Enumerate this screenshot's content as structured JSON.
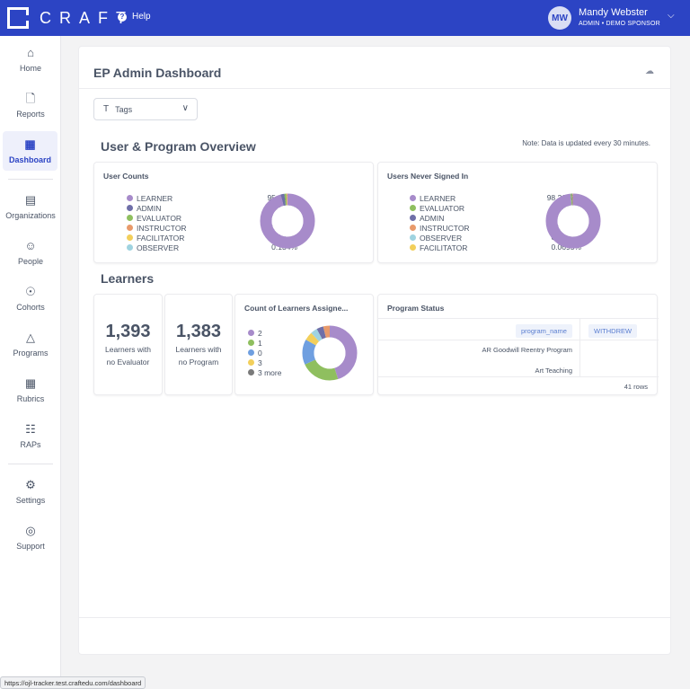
{
  "app": {
    "logo_text": "CRAFT",
    "help_label": "Help",
    "user": {
      "initials": "MW",
      "name": "Mandy Webster",
      "role": "ADMIN • DEMO SPONSOR"
    }
  },
  "sidebar": {
    "items": [
      {
        "label": "Home",
        "icon": "home-icon"
      },
      {
        "label": "Reports",
        "icon": "file-icon"
      },
      {
        "label": "Dashboard",
        "icon": "grid-icon",
        "active": true
      },
      {
        "label": "Organizations",
        "icon": "building-icon"
      },
      {
        "label": "People",
        "icon": "people-icon"
      },
      {
        "label": "Cohorts",
        "icon": "cohort-icon"
      },
      {
        "label": "Programs",
        "icon": "graduation-cap-icon"
      },
      {
        "label": "Rubrics",
        "icon": "table-icon"
      },
      {
        "label": "RAPs",
        "icon": "clipboard-icon"
      },
      {
        "label": "Settings",
        "icon": "gear-icon"
      },
      {
        "label": "Support",
        "icon": "lifebuoy-icon"
      }
    ]
  },
  "dashboard": {
    "title": "EP Admin Dashboard",
    "tags_filter": {
      "label": "Tags"
    },
    "overview": {
      "title": "User & Program Overview",
      "note": "Note: Data is updated every 30 minutes."
    },
    "learners_title": "Learners",
    "learners_no_evaluator": {
      "value": "1,393",
      "label_line1": "Learners with",
      "label_line2": "no Evaluator"
    },
    "learners_no_program": {
      "value": "1,383",
      "label_line1": "Learners with",
      "label_line2": "no Program"
    },
    "program_status": {
      "title": "Program Status",
      "columns": [
        "program_name",
        "WITHDREW"
      ],
      "rows": [
        "AR Goodwill Reentry Program",
        "Art Teaching"
      ],
      "row_count": "41 rows"
    }
  },
  "status_url": "https://ojl-tracker.test.craftedu.com/dashboard",
  "colors": {
    "brand": "#2c44c4",
    "learner": "#a78bca",
    "admin": "#6f6fa8",
    "evaluator": "#8fbf5f",
    "instructor": "#e89a6b",
    "facilitator": "#f2cf5b",
    "observer": "#9fd3e0"
  },
  "chart_data": [
    {
      "type": "pie",
      "title": "User Counts",
      "series": [
        {
          "name": "LEARNER",
          "value": 95.847,
          "label": "95.847%",
          "color": "#a78bca"
        },
        {
          "name": "ADMIN",
          "value": 2.143,
          "label": "2.143%",
          "color": "#6f6fa8"
        },
        {
          "name": "EVALUATOR",
          "value": 1.206,
          "label": "1.206%",
          "color": "#8fbf5f"
        },
        {
          "name": "INSTRUCTOR",
          "value": 0.536,
          "label": "0.536%",
          "color": "#e89a6b"
        },
        {
          "name": "FACILITATOR",
          "value": 0.134,
          "label": "0.134%",
          "color": "#f2cf5b"
        },
        {
          "name": "OBSERVER",
          "value": 0.134,
          "label": "0.134%",
          "color": "#9fd3e0"
        }
      ]
    },
    {
      "type": "pie",
      "title": "Users Never Signed In",
      "series": [
        {
          "name": "LEARNER",
          "value": 98.2627,
          "label": "98.2627%",
          "color": "#a78bca"
        },
        {
          "name": "EVALUATOR",
          "value": 0.7644,
          "label": "0.7644%",
          "color": "#8fbf5f"
        },
        {
          "name": "ADMIN",
          "value": 0.417,
          "label": "0.4170%",
          "color": "#6f6fa8"
        },
        {
          "name": "INSTRUCTOR",
          "value": 0.3475,
          "label": "0.3475%",
          "color": "#e89a6b"
        },
        {
          "name": "OBSERVER",
          "value": 0.139,
          "label": "0.1390%",
          "color": "#9fd3e0"
        },
        {
          "name": "FACILITATOR",
          "value": 0.0695,
          "label": "0.0695%",
          "color": "#f2cf5b"
        }
      ]
    },
    {
      "type": "pie",
      "title": "Count of Learners Assigne...",
      "series": [
        {
          "name": "2",
          "value": 45,
          "color": "#a78bca"
        },
        {
          "name": "1",
          "value": 23,
          "color": "#8fbf5f"
        },
        {
          "name": "0",
          "value": 15,
          "color": "#6f9fe0"
        },
        {
          "name": "3",
          "value": 5,
          "color": "#f2cf5b"
        },
        {
          "name": "3 more",
          "value": 12,
          "color": "#7a7a7a"
        }
      ],
      "extra_slice_colors": [
        "#9fd3e0",
        "#6f6fa8",
        "#e89a6b"
      ]
    }
  ]
}
